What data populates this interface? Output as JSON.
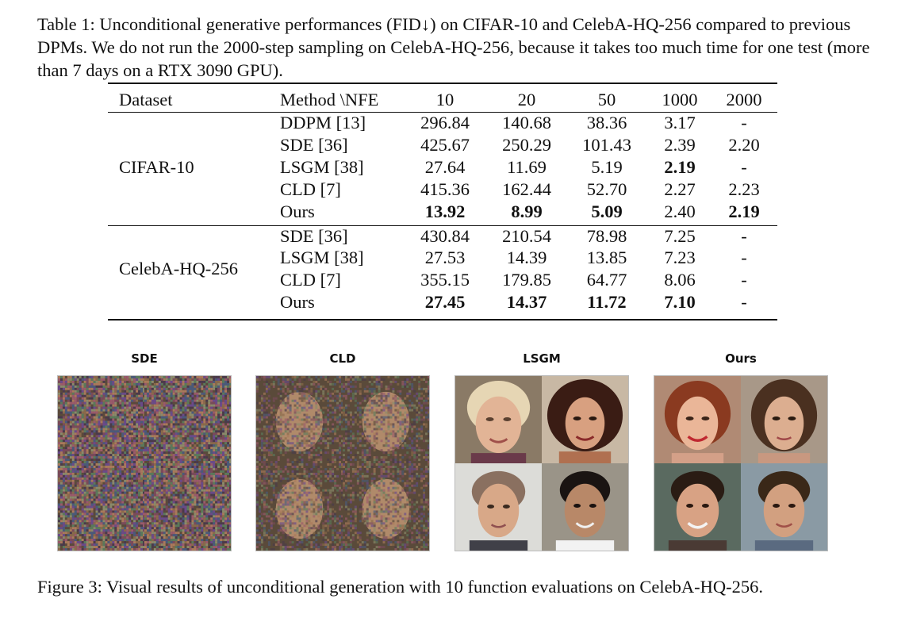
{
  "table_caption": "Table 1: Unconditional generative performances (FID↓) on CIFAR-10 and CelebA-HQ-256 compared to previous DPMs. We do not run the 2000-step sampling on CelebA-HQ-256, because it takes too much time for one test (more than 7 days on a RTX 3090 GPU).",
  "table": {
    "headers": [
      "Dataset",
      "Method \\NFE",
      "10",
      "20",
      "50",
      "1000",
      "2000"
    ],
    "groups": [
      {
        "dataset": "CIFAR-10",
        "rows": [
          {
            "method": "DDPM [13]",
            "values": [
              "296.84",
              "140.68",
              "38.36",
              "3.17",
              "-"
            ]
          },
          {
            "method": "SDE [36]",
            "values": [
              "425.67",
              "250.29",
              "101.43",
              "2.39",
              "2.20"
            ]
          },
          {
            "method": "LSGM [38]",
            "values": [
              "27.64",
              "11.69",
              "5.19",
              "2.19",
              "-"
            ]
          },
          {
            "method": "CLD [7]",
            "values": [
              "415.36",
              "162.44",
              "52.70",
              "2.27",
              "2.23"
            ]
          },
          {
            "method": "Ours",
            "values": [
              "13.92",
              "8.99",
              "5.09",
              "2.40",
              "2.19"
            ]
          }
        ]
      },
      {
        "dataset": "CelebA-HQ-256",
        "rows": [
          {
            "method": "SDE [36]",
            "values": [
              "430.84",
              "210.54",
              "78.98",
              "7.25",
              "-"
            ]
          },
          {
            "method": "LSGM [38]",
            "values": [
              "27.53",
              "14.39",
              "13.85",
              "7.23",
              "-"
            ]
          },
          {
            "method": "CLD [7]",
            "values": [
              "355.15",
              "179.85",
              "64.77",
              "8.06",
              "-"
            ]
          },
          {
            "method": "Ours",
            "values": [
              "27.45",
              "14.37",
              "11.72",
              "7.10",
              "-"
            ]
          }
        ]
      }
    ]
  },
  "figure": {
    "panels": [
      "SDE",
      "CLD",
      "LSGM",
      "Ours"
    ]
  },
  "figure_caption": "Figure 3: Visual results of unconditional generation with 10 function evaluations on CelebA-HQ-256."
}
